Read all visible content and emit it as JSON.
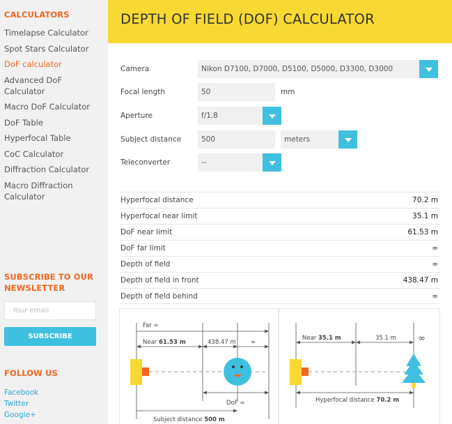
{
  "sidebar": {
    "calculators_heading": "CALCULATORS",
    "items": [
      {
        "label": "Timelapse Calculator"
      },
      {
        "label": "Spot Stars Calculator"
      },
      {
        "label": "DoF calculator",
        "active": true
      },
      {
        "label": "Advanced DoF Calculator"
      },
      {
        "label": "Macro DoF Calculator"
      },
      {
        "label": "DoF Table"
      },
      {
        "label": "Hyperfocal Table"
      },
      {
        "label": "CoC Calculator"
      },
      {
        "label": "Diffraction Calculator"
      },
      {
        "label": "Macro Diffraction Calculator"
      }
    ],
    "subscribe_heading": "SUBSCRIBE TO OUR NEWSLETTER",
    "email_placeholder": "Your email",
    "subscribe_button": "SUBSCRIBE",
    "follow_heading": "FOLLOW US",
    "follow_links": [
      {
        "label": "Facebook"
      },
      {
        "label": "Twitter"
      },
      {
        "label": "Google+"
      }
    ]
  },
  "header": {
    "title": "DEPTH OF FIELD (DOF) CALCULATOR"
  },
  "form": {
    "camera_label": "Camera",
    "camera_value": "Nikon D7100, D7000, D5100, D5000, D3300, D3000",
    "focal_label": "Focal length",
    "focal_value": "50",
    "focal_unit": "mm",
    "aperture_label": "Aperture",
    "aperture_value": "f/1.8",
    "distance_label": "Subject distance",
    "distance_value": "500",
    "distance_unit": "meters",
    "tele_label": "Teleconverter",
    "tele_value": "--"
  },
  "results": [
    {
      "label": "Hyperfocal distance",
      "value": "70.2 m"
    },
    {
      "label": "Hyperfocal near limit",
      "value": "35.1 m"
    },
    {
      "label": "DoF near limit",
      "value": "61.53 m"
    },
    {
      "label": "DoF far limit",
      "value": "∞"
    },
    {
      "label": "Depth of field",
      "value": "∞"
    },
    {
      "label": "Depth of field in front",
      "value": "438.47 m"
    },
    {
      "label": "Depth of field behind",
      "value": "∞"
    }
  ],
  "diagram_dof": {
    "far_label": "Far",
    "far_value": "∞",
    "near_label": "Near",
    "near_value": "61.53 m",
    "front_value": "438.47 m",
    "behind_value": "∞",
    "dof_label": "DoF",
    "dof_value": "∞",
    "subject_label": "Subject distance",
    "subject_value": "500 m"
  },
  "diagram_hyper": {
    "near_label": "Near",
    "near_value": "35.1 m",
    "mid_value": "35.1 m",
    "far_value": "∞",
    "hyper_label": "Hyperfocal distance",
    "hyper_value": "70.2 m"
  },
  "colors": {
    "accent_orange": "#f26522",
    "accent_blue": "#3fc0e0",
    "header_yellow": "#f8d934",
    "camera_yellow": "#f8d934",
    "lens_orange": "#f26522"
  }
}
